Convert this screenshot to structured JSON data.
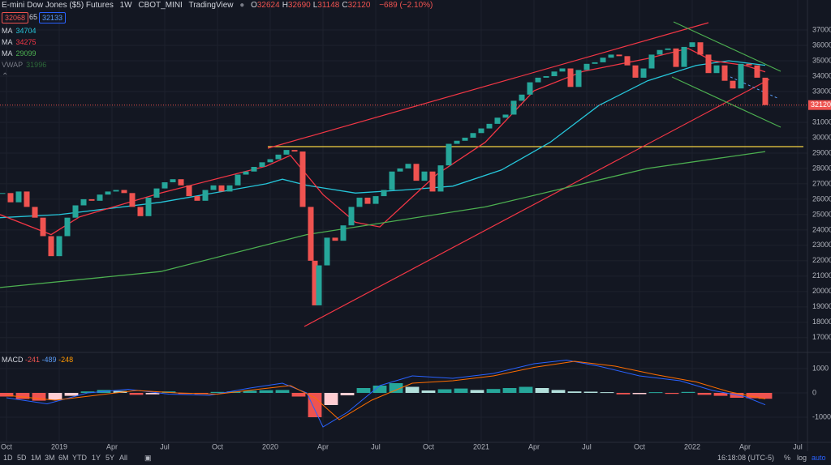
{
  "header": {
    "title": "E-mini Dow Jones ($5) Futures",
    "interval": "1W",
    "exchange": "CBOT_MINI",
    "source": "TradingView",
    "ohlc": [
      {
        "key": "O",
        "value": 32624
      },
      {
        "key": "H",
        "value": 32690
      },
      {
        "key": "L",
        "value": 31148
      },
      {
        "key": "C",
        "value": 32120
      }
    ],
    "change": "−689 (−2.10%)",
    "bid": 32068,
    "spread": 65,
    "ask": 32133
  },
  "chart_data": [
    {
      "type": "candlestick",
      "colors": {
        "up": "#26a69a",
        "down": "#ef5350"
      },
      "xlim": [
        -1.6,
        197.4
      ],
      "ylim": [
        16200,
        38950
      ],
      "xticks": [
        {
          "value": 0,
          "label": "Oct"
        },
        {
          "value": 13,
          "label": "2019"
        },
        {
          "value": 26,
          "label": "Apr"
        },
        {
          "value": 39,
          "label": "Jul"
        },
        {
          "value": 52,
          "label": "Oct"
        },
        {
          "value": 65,
          "label": "2020"
        },
        {
          "value": 78,
          "label": "Apr"
        },
        {
          "value": 91,
          "label": "Jul"
        },
        {
          "value": 104,
          "label": "Oct"
        },
        {
          "value": 117,
          "label": "2021"
        },
        {
          "value": 130,
          "label": "Apr"
        },
        {
          "value": 143,
          "label": "Jul"
        },
        {
          "value": 156,
          "label": "Oct"
        },
        {
          "value": 169,
          "label": "2022"
        },
        {
          "value": 182,
          "label": "Apr"
        },
        {
          "value": 195,
          "label": "Jul"
        }
      ],
      "yticks": [
        17000,
        18000,
        19000,
        20000,
        21000,
        22000,
        23000,
        24000,
        25000,
        26000,
        27000,
        28000,
        29000,
        30000,
        31000,
        32000,
        33000,
        34000,
        35000,
        36000,
        37000
      ],
      "x": [
        -1,
        1,
        3,
        5,
        7,
        9,
        11,
        13,
        15,
        17,
        19,
        21,
        23,
        25,
        27,
        29,
        31,
        33,
        35,
        37,
        39,
        41,
        43,
        45,
        47,
        49,
        51,
        53,
        55,
        57,
        59,
        61,
        63,
        65,
        67,
        69,
        71,
        73,
        75,
        76,
        77,
        79,
        81,
        83,
        85,
        87,
        89,
        91,
        93,
        95,
        97,
        99,
        101,
        103,
        105,
        107,
        109,
        111,
        113,
        115,
        117,
        119,
        121,
        123,
        125,
        127,
        129,
        131,
        133,
        135,
        137,
        139,
        141,
        143,
        145,
        147,
        149,
        151,
        153,
        155,
        157,
        159,
        161,
        163,
        165,
        167,
        169,
        171,
        173,
        175,
        177,
        179,
        181,
        183,
        185,
        187
      ],
      "close": [
        26400,
        25800,
        26500,
        25500,
        24800,
        23600,
        22300,
        23600,
        24800,
        25600,
        26000,
        25900,
        26300,
        26500,
        26600,
        26400,
        25500,
        24900,
        26100,
        26700,
        27100,
        27300,
        26900,
        26200,
        25900,
        26600,
        26900,
        26500,
        26900,
        27600,
        27800,
        28100,
        28400,
        28600,
        28900,
        29200,
        29100,
        25500,
        22000,
        19100,
        21700,
        23500,
        23300,
        24300,
        25500,
        26100,
        25700,
        26200,
        26600,
        27800,
        28000,
        28300,
        27200,
        27800,
        26500,
        28200,
        29600,
        29800,
        30000,
        30300,
        30600,
        30900,
        31300,
        31500,
        32400,
        32800,
        33600,
        33900,
        34000,
        34300,
        34500,
        33300,
        34400,
        34800,
        34900,
        35200,
        35400,
        35300,
        34700,
        33900,
        34500,
        35400,
        35700,
        35800,
        34600,
        35900,
        36200,
        35400,
        34200,
        34700,
        33700,
        33200,
        34800,
        34700,
        33900,
        32120
      ],
      "indicators": [
        {
          "name": "MA",
          "color": "#26c6da",
          "x": [
            -1.6,
            13,
            38,
            64,
            68,
            74,
            86,
            98,
            110,
            122,
            134,
            146,
            158,
            170,
            178,
            187
          ],
          "values": [
            24800,
            25000,
            25800,
            27000,
            27300,
            26900,
            26400,
            26600,
            26850,
            27900,
            29700,
            32100,
            33700,
            34700,
            35000,
            34704
          ]
        },
        {
          "name": "MA",
          "color": "#f23645",
          "x": [
            -1.6,
            11,
            18,
            38,
            64,
            70,
            78,
            86,
            92,
            106,
            118,
            130,
            142,
            158,
            168,
            174,
            182,
            187
          ],
          "values": [
            25000,
            23700,
            24850,
            26400,
            28150,
            28850,
            26300,
            24500,
            24200,
            27600,
            29700,
            33050,
            34300,
            35150,
            35800,
            35000,
            34700,
            34275
          ]
        },
        {
          "name": "MA",
          "color": "#4caf50",
          "x": [
            -1.6,
            38,
            74,
            118,
            158,
            187
          ],
          "values": [
            20260,
            21300,
            23700,
            25500,
            28000,
            29099
          ]
        }
      ],
      "vwap": {
        "name": "VWAP",
        "value": 31996
      }
    },
    {
      "type": "macd",
      "title": "MACD",
      "ylim": [
        -2000,
        1600
      ],
      "yticks": [
        1000,
        0,
        -1000
      ],
      "histogram": {
        "x": [
          0,
          4,
          8,
          12,
          16,
          20,
          24,
          28,
          32,
          36,
          40,
          44,
          48,
          52,
          56,
          60,
          64,
          68,
          72,
          76,
          80,
          84,
          88,
          92,
          96,
          100,
          104,
          108,
          112,
          116,
          120,
          124,
          128,
          132,
          136,
          140,
          144,
          148,
          152,
          156,
          160,
          164,
          168,
          172,
          176,
          180,
          184,
          187
        ],
        "values": [
          -150,
          -250,
          -320,
          -280,
          -120,
          60,
          120,
          80,
          -80,
          -60,
          60,
          -40,
          -50,
          40,
          60,
          90,
          110,
          120,
          -150,
          -1000,
          -500,
          -100,
          200,
          300,
          400,
          250,
          100,
          150,
          180,
          120,
          160,
          200,
          250,
          200,
          120,
          60,
          50,
          30,
          -60,
          -50,
          30,
          -40,
          40,
          -80,
          -120,
          -200,
          -220,
          -241
        ]
      },
      "macd_line": {
        "color": "#2962ff",
        "x": [
          0,
          10,
          20,
          30,
          40,
          50,
          60,
          68,
          74,
          78,
          84,
          92,
          100,
          110,
          120,
          130,
          138,
          146,
          156,
          166,
          174,
          182,
          187
        ],
        "values": [
          -200,
          -450,
          0,
          150,
          -50,
          -100,
          200,
          400,
          0,
          -1400,
          -800,
          300,
          700,
          600,
          800,
          1200,
          1350,
          1100,
          700,
          500,
          100,
          -150,
          -489
        ]
      },
      "signal_line": {
        "color": "#ff6d00",
        "x": [
          0,
          12,
          22,
          32,
          42,
          52,
          62,
          70,
          76,
          82,
          90,
          100,
          110,
          120,
          130,
          140,
          150,
          160,
          170,
          178,
          187
        ],
        "values": [
          -100,
          -300,
          -100,
          100,
          0,
          -50,
          150,
          300,
          -200,
          -1100,
          -300,
          400,
          500,
          700,
          1050,
          1300,
          1100,
          750,
          450,
          50,
          -248
        ]
      }
    }
  ],
  "toolbar": {
    "ranges": [
      "1D",
      "5D",
      "1M",
      "3M",
      "6M",
      "YTD",
      "1Y",
      "5Y",
      "All"
    ],
    "clock": "16:18:08 (UTC-5)",
    "buttons": [
      "%",
      "log",
      "auto"
    ]
  }
}
